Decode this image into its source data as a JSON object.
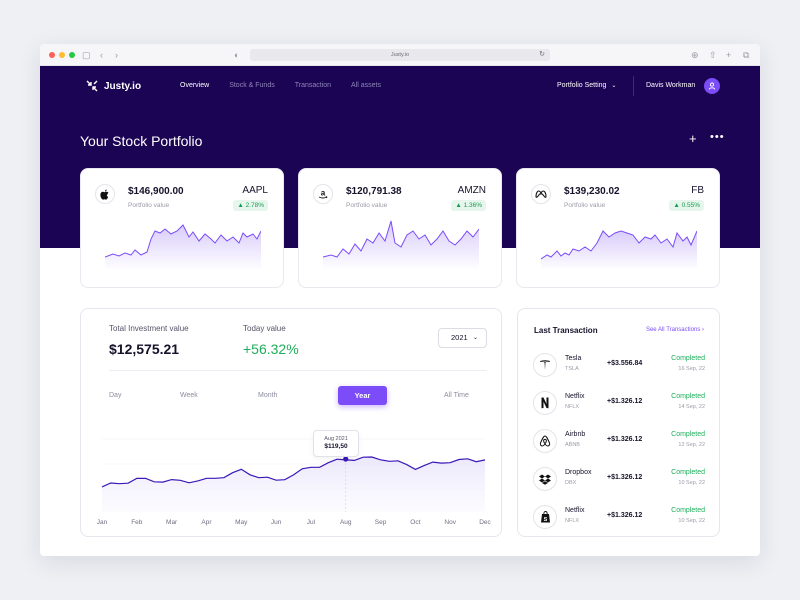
{
  "browser": {
    "url": "Justy.io",
    "colors": {
      "close": "#fe5f57",
      "minimize": "#febc2e",
      "maximize": "#28c840"
    }
  },
  "header": {
    "logo": "Justy.io",
    "nav": [
      "Overview",
      "Stock & Funds",
      "Transaction",
      "All assets"
    ],
    "active_nav": "Overview",
    "portfolio_setting": "Portfolio Setting",
    "user": "Davis Workman",
    "accent": "#7b4cf7",
    "background": "#1b0454"
  },
  "page_title": "Your Stock Portfolio",
  "stocks": [
    {
      "icon": "apple-icon",
      "value": "$146,900.00",
      "sub": "Portfolio value",
      "ticker": "AAPL",
      "change": "2.78%"
    },
    {
      "icon": "amazon-icon",
      "value": "$120,791.38",
      "sub": "Portfolio value",
      "ticker": "AMZN",
      "change": "1.36%"
    },
    {
      "icon": "meta-icon",
      "value": "$139,230.02",
      "sub": "Portfolio value",
      "ticker": "FB",
      "change": "0.55%"
    }
  ],
  "investment": {
    "total_label": "Total Investment value",
    "total_value": "$12,575.21",
    "today_label": "Today value",
    "today_value": "+56.32%",
    "year": "2021",
    "ranges": [
      "Day",
      "Week",
      "Month",
      "Year",
      "All Time"
    ],
    "active_range": "Year",
    "tooltip_date": "Aug 2021",
    "tooltip_value": "$119,50"
  },
  "chart_data": {
    "type": "line",
    "x": [
      "Jan",
      "Feb",
      "Mar",
      "Apr",
      "May",
      "Jun",
      "Jul",
      "Aug",
      "Sep",
      "Oct",
      "Nov",
      "Dec"
    ],
    "series": [
      {
        "values": [
          27,
          35,
          33,
          34,
          44,
          33,
          48,
          57,
          58,
          48,
          55,
          56
        ]
      }
    ],
    "highlight": {
      "x": "Aug",
      "label": "$119,50"
    }
  },
  "transactions": {
    "title": "Last Transaction",
    "link": "See All Transactions",
    "items": [
      {
        "icon": "tesla-icon",
        "name": "Tesla",
        "code": "TSLA",
        "amount": "+$3.556.84",
        "status": "Completed",
        "date": "16 Sep, 22"
      },
      {
        "icon": "netflix-icon",
        "name": "Netflix",
        "code": "NFLX",
        "amount": "+$1.326.12",
        "status": "Completed",
        "date": "14 Sep, 22"
      },
      {
        "icon": "airbnb-icon",
        "name": "Airbnb",
        "code": "ABNB",
        "amount": "+$1.326.12",
        "status": "Completed",
        "date": "12 Sep, 22"
      },
      {
        "icon": "dropbox-icon",
        "name": "Dropbox",
        "code": "DBX",
        "amount": "+$1.326.12",
        "status": "Completed",
        "date": "10 Sep, 22"
      },
      {
        "icon": "shopify-icon",
        "name": "Netflix",
        "code": "NFLX",
        "amount": "+$1.326.12",
        "status": "Completed",
        "date": "10 Sep, 22"
      }
    ]
  }
}
